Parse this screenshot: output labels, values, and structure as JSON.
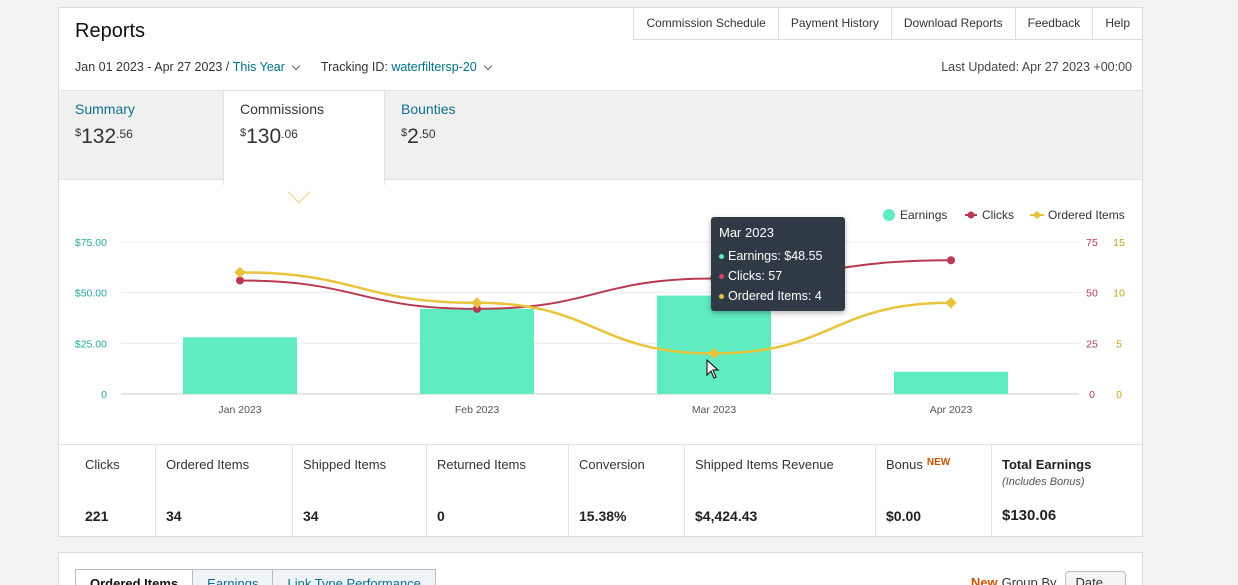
{
  "page": {
    "title": "Reports"
  },
  "top_nav": [
    "Commission Schedule",
    "Payment History",
    "Download Reports",
    "Feedback",
    "Help"
  ],
  "filters": {
    "date_range": "Jan 01 2023 - Apr 27 2023 /",
    "date_preset": "This Year",
    "tracking_label": "Tracking ID:",
    "tracking_value": "waterfiltersp-20",
    "last_updated": "Last Updated: Apr 27 2023 +00:00"
  },
  "tabs": [
    {
      "label": "Summary",
      "dollar": "$",
      "whole": "132",
      "frac": ".56"
    },
    {
      "label": "Commissions",
      "dollar": "$",
      "whole": "130",
      "frac": ".06"
    },
    {
      "label": "Bounties",
      "dollar": "$",
      "whole": "2",
      "frac": ".50"
    }
  ],
  "chart_data": {
    "type": "bar",
    "categories": [
      "Jan 2023",
      "Feb 2023",
      "Mar 2023",
      "Apr 2023"
    ],
    "series": [
      {
        "name": "Earnings",
        "type": "bar",
        "axis": "left",
        "values": [
          28,
          42,
          48.55,
          11
        ],
        "color": "#5eecc0"
      },
      {
        "name": "Clicks",
        "type": "line",
        "axis": "right1",
        "values": [
          56,
          42,
          57,
          66
        ],
        "color": "#b83a52"
      },
      {
        "name": "Ordered Items",
        "type": "line",
        "axis": "right2",
        "values": [
          12,
          9,
          4,
          9
        ],
        "color": "#e8c33c"
      }
    ],
    "y_left": {
      "ticks": [
        "$75.00",
        "$50.00",
        "$25.00",
        "0"
      ],
      "range": [
        0,
        75
      ]
    },
    "y_right1": {
      "ticks": [
        "75",
        "50",
        "25",
        "0"
      ],
      "range": [
        0,
        75
      ]
    },
    "y_right2": {
      "ticks": [
        "15",
        "10",
        "5",
        "0"
      ],
      "range": [
        0,
        15
      ]
    },
    "legend": [
      "Earnings",
      "Clicks",
      "Ordered Items"
    ],
    "legend_position": "top-right",
    "grid": true
  },
  "tooltip": {
    "title": "Mar 2023",
    "earnings": "Earnings: $48.55",
    "clicks": "Clicks: 57",
    "ordered": "Ordered Items: 4"
  },
  "stats": [
    {
      "label": "Clicks",
      "value": "221"
    },
    {
      "label": "Ordered Items",
      "value": "34"
    },
    {
      "label": "Shipped Items",
      "value": "34"
    },
    {
      "label": "Returned Items",
      "value": "0"
    },
    {
      "label": "Conversion",
      "value": "15.38%"
    },
    {
      "label": "Shipped Items Revenue",
      "value": "$4,424.43"
    },
    {
      "label": "Bonus",
      "badge": "NEW",
      "value": "$0.00"
    },
    {
      "label": "Total Earnings",
      "sub": "(Includes Bonus)",
      "value": "$130.06"
    }
  ],
  "bottom_tabs": [
    "Ordered Items",
    "Earnings",
    "Link Type Performance"
  ],
  "group_by": {
    "badge": "New",
    "label": "Group By",
    "value": "Date"
  }
}
